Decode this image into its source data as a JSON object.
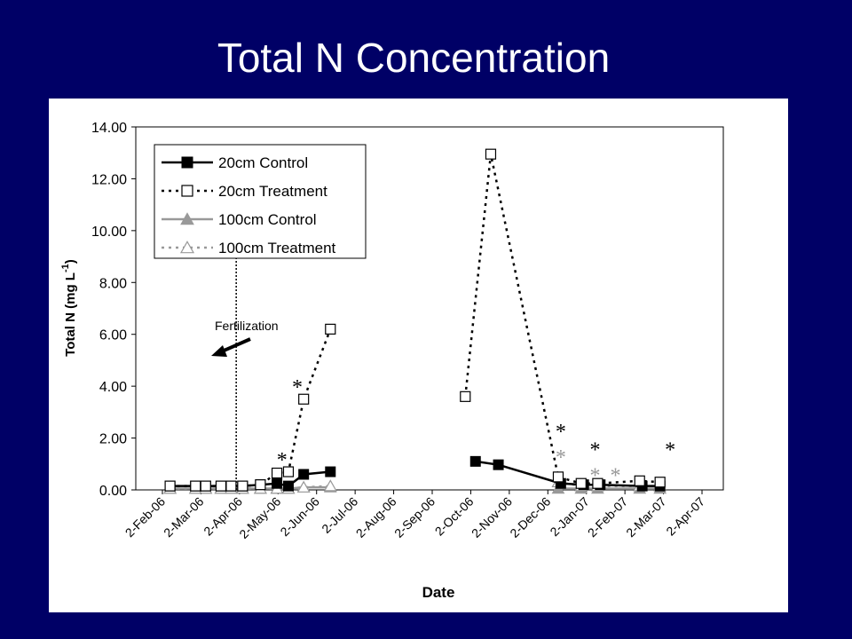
{
  "slide": {
    "title": "Total N Concentration"
  },
  "chart_data": {
    "type": "line",
    "xlabel": "Date",
    "ylabel": "Total N (mg L",
    "ylabel_sup": "-1",
    "ylabel_close": ")",
    "ylim": [
      0,
      14
    ],
    "y_ticks": [
      "0.00",
      "2.00",
      "4.00",
      "6.00",
      "8.00",
      "10.00",
      "12.00",
      "14.00"
    ],
    "x_ticks": [
      "2-Feb-06",
      "2-Mar-06",
      "2-Apr-06",
      "2-May-06",
      "2-Jun-06",
      "2-Jul-06",
      "2-Aug-06",
      "2-Sep-06",
      "2-Oct-06",
      "2-Nov-06",
      "2-Dec-06",
      "2-Jan-07",
      "2-Feb-07",
      "2-Mar-07",
      "2-Apr-07"
    ],
    "grid": false,
    "legend_position": "top-left",
    "series": [
      {
        "name": "20cm Control",
        "marker": "square-filled",
        "line": "solid",
        "color": "#000000",
        "points": [
          {
            "x": "2006-02-08",
            "y": 0.15
          },
          {
            "x": "2006-02-28",
            "y": 0.15
          },
          {
            "x": "2006-03-08",
            "y": 0.15
          },
          {
            "x": "2006-03-20",
            "y": 0.15
          },
          {
            "x": "2006-03-28",
            "y": 0.15
          },
          {
            "x": "2006-04-06",
            "y": 0.15
          },
          {
            "x": "2006-04-20",
            "y": 0.2
          },
          {
            "x": "2006-05-03",
            "y": 0.25
          },
          {
            "x": "2006-05-12",
            "y": 0.15
          },
          {
            "x": "2006-05-24",
            "y": 0.6
          },
          {
            "x": "2006-06-14",
            "y": 0.7
          }
        ],
        "points2": [
          {
            "x": "2006-10-06",
            "y": 1.1
          },
          {
            "x": "2006-10-24",
            "y": 0.97
          },
          {
            "x": "2006-12-12",
            "y": 0.25
          },
          {
            "x": "2006-12-30",
            "y": 0.2
          },
          {
            "x": "2007-01-12",
            "y": 0.2
          },
          {
            "x": "2007-02-14",
            "y": 0.15
          },
          {
            "x": "2007-02-28",
            "y": 0.15
          }
        ]
      },
      {
        "name": "20cm Treatment",
        "marker": "square-open",
        "line": "dotted",
        "color": "#000000",
        "points": [
          {
            "x": "2006-02-08",
            "y": 0.15
          },
          {
            "x": "2006-02-28",
            "y": 0.15
          },
          {
            "x": "2006-03-08",
            "y": 0.15
          },
          {
            "x": "2006-03-20",
            "y": 0.15
          },
          {
            "x": "2006-03-28",
            "y": 0.15
          },
          {
            "x": "2006-04-06",
            "y": 0.15
          },
          {
            "x": "2006-04-20",
            "y": 0.2
          },
          {
            "x": "2006-05-03",
            "y": 0.65
          },
          {
            "x": "2006-05-12",
            "y": 0.7
          },
          {
            "x": "2006-05-24",
            "y": 3.5
          },
          {
            "x": "2006-06-14",
            "y": 6.2
          }
        ],
        "points2": [
          {
            "x": "2006-09-28",
            "y": 3.6
          },
          {
            "x": "2006-10-18",
            "y": 12.95
          },
          {
            "x": "2006-12-10",
            "y": 0.5
          },
          {
            "x": "2006-12-28",
            "y": 0.25
          },
          {
            "x": "2007-01-10",
            "y": 0.25
          },
          {
            "x": "2007-02-12",
            "y": 0.35
          },
          {
            "x": "2007-02-28",
            "y": 0.3
          }
        ]
      },
      {
        "name": "100cm Control",
        "marker": "triangle-filled",
        "line": "solid-gray",
        "color": "#999999",
        "points": [
          {
            "x": "2006-02-08",
            "y": 0.05
          },
          {
            "x": "2006-02-28",
            "y": 0.05
          },
          {
            "x": "2006-03-08",
            "y": 0.05
          },
          {
            "x": "2006-03-20",
            "y": 0.05
          },
          {
            "x": "2006-03-28",
            "y": 0.05
          },
          {
            "x": "2006-04-06",
            "y": 0.05
          },
          {
            "x": "2006-04-20",
            "y": 0.05
          },
          {
            "x": "2006-05-03",
            "y": 0.05
          },
          {
            "x": "2006-05-12",
            "y": 0.05
          },
          {
            "x": "2006-05-24",
            "y": 0.1
          },
          {
            "x": "2006-06-14",
            "y": 0.1
          }
        ],
        "points2": [
          {
            "x": "2006-12-10",
            "y": 0.05
          },
          {
            "x": "2006-12-28",
            "y": 0.05
          },
          {
            "x": "2007-01-10",
            "y": 0.05
          },
          {
            "x": "2007-02-12",
            "y": 0.05
          },
          {
            "x": "2007-02-28",
            "y": 0.05
          }
        ]
      },
      {
        "name": "100cm Treatment",
        "marker": "triangle-open",
        "line": "dotted-gray",
        "color": "#999999",
        "points": [
          {
            "x": "2006-02-08",
            "y": 0.05
          },
          {
            "x": "2006-02-28",
            "y": 0.05
          },
          {
            "x": "2006-03-08",
            "y": 0.05
          },
          {
            "x": "2006-03-20",
            "y": 0.05
          },
          {
            "x": "2006-03-28",
            "y": 0.05
          },
          {
            "x": "2006-04-06",
            "y": 0.05
          },
          {
            "x": "2006-04-20",
            "y": 0.05
          },
          {
            "x": "2006-05-03",
            "y": 0.05
          },
          {
            "x": "2006-05-12",
            "y": 0.05
          },
          {
            "x": "2006-05-24",
            "y": 0.1
          },
          {
            "x": "2006-06-14",
            "y": 0.15
          }
        ],
        "points2": [
          {
            "x": "2006-12-10",
            "y": 0.3
          },
          {
            "x": "2006-12-28",
            "y": 0.15
          },
          {
            "x": "2007-01-10",
            "y": 0.15
          },
          {
            "x": "2007-02-12",
            "y": 0.15
          },
          {
            "x": "2007-02-28",
            "y": 0.15
          }
        ]
      }
    ],
    "annotations": {
      "fertilization": {
        "text": "Fertilization",
        "x": "2006-04-01"
      },
      "asterisks": [
        {
          "text": "*",
          "x": "2006-05-07",
          "y": 1.3,
          "color": "#000000"
        },
        {
          "text": "*",
          "x": "2006-05-19",
          "y": 4.1,
          "color": "#000000"
        },
        {
          "text": "*",
          "x": "2006-12-12",
          "y": 2.4,
          "color": "#000000"
        },
        {
          "text": "*",
          "x": "2006-12-12",
          "y": 1.4,
          "color": "#999999"
        },
        {
          "text": "*",
          "x": "2007-01-08",
          "y": 1.7,
          "color": "#000000"
        },
        {
          "text": "*",
          "x": "2007-01-08",
          "y": 0.7,
          "color": "#999999"
        },
        {
          "text": "*",
          "x": "2007-01-24",
          "y": 0.7,
          "color": "#999999"
        },
        {
          "text": "*",
          "x": "2007-03-08",
          "y": 1.7,
          "color": "#000000"
        }
      ]
    }
  }
}
